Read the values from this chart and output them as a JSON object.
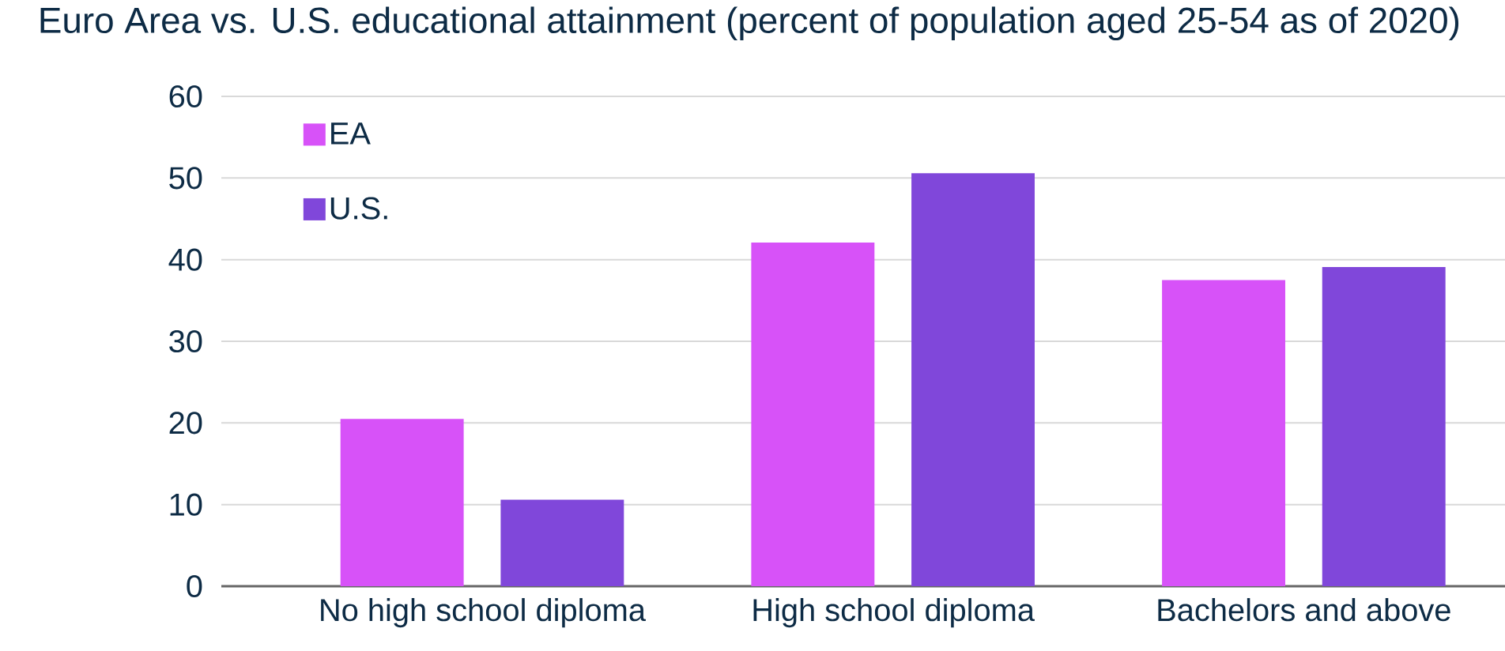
{
  "chart_data": {
    "type": "bar",
    "title": "Euro Area vs. U.S. educational attainment (percent of population aged 25-54 as of 2020)",
    "categories": [
      "No high school diploma",
      "High school diploma",
      "Bachelors and above"
    ],
    "series": [
      {
        "name": "EA",
        "color": "#d752f8",
        "values": [
          20.5,
          42.1,
          37.5
        ]
      },
      {
        "name": "U.S.",
        "color": "#8047da",
        "values": [
          10.6,
          50.6,
          39.1
        ]
      }
    ],
    "ylim": [
      0,
      60
    ],
    "yticks": [
      0,
      10,
      20,
      30,
      40,
      50,
      60
    ],
    "grid": "y",
    "legend": "top left"
  }
}
